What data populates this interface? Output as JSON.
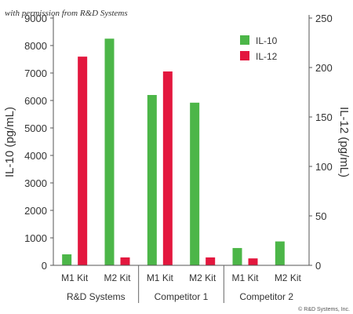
{
  "watermark": "with permission from R&D Systems",
  "copyright": "© R&D Systems, Inc.",
  "chart_data": {
    "type": "bar",
    "title": "",
    "categories": [
      "M1 Kit",
      "M2 Kit",
      "M1 Kit",
      "M2 Kit",
      "M1 Kit",
      "M2 Kit"
    ],
    "groups": [
      {
        "label": "R&D Systems",
        "categories": [
          0,
          1
        ]
      },
      {
        "label": "Competitor 1",
        "categories": [
          2,
          3
        ]
      },
      {
        "label": "Competitor 2",
        "categories": [
          4,
          5
        ]
      }
    ],
    "series": [
      {
        "name": "IL-10",
        "axis": "left",
        "color": "#4cb648",
        "values": [
          400,
          8250,
          6200,
          5920,
          630,
          870
        ]
      },
      {
        "name": "IL-12",
        "axis": "right",
        "color": "#e3173e",
        "values": [
          211,
          8,
          196,
          8,
          7,
          null
        ]
      }
    ],
    "ylabel_left": "IL-10 (pg/mL)",
    "ylabel_right": "IL-12 (pg/mL)",
    "ylim_left": [
      0,
      9000
    ],
    "yticks_left": [
      0,
      1000,
      2000,
      3000,
      4000,
      5000,
      6000,
      7000,
      8000,
      9000
    ],
    "ylim_right": [
      0,
      250
    ],
    "yticks_right": [
      0,
      50,
      100,
      150,
      200,
      250
    ],
    "grid": false,
    "legend_position": "top-right"
  }
}
